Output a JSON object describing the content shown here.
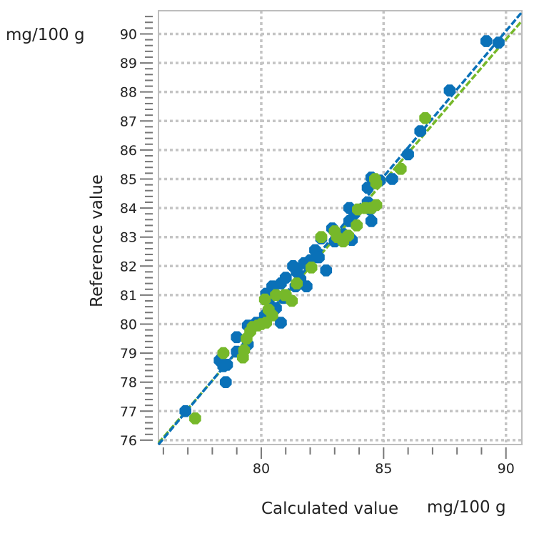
{
  "chart_data": {
    "type": "scatter",
    "xlabel": "Calculated value",
    "ylabel": "Reference value",
    "x_unit": "mg/100 g",
    "y_unit": "mg/100 g",
    "xlim": [
      75.8,
      90.65
    ],
    "ylim": [
      75.85,
      90.8
    ],
    "x_ticks": [
      80,
      85,
      90
    ],
    "y_ticks": [
      76,
      77,
      78,
      79,
      80,
      81,
      82,
      83,
      84,
      85,
      86,
      87,
      88,
      89,
      90
    ],
    "grid": true,
    "legend": "none",
    "series": [
      {
        "color": "#0a71b8",
        "regression_line": [
          [
            75.8,
            75.85
          ],
          [
            90.65,
            90.75
          ]
        ],
        "points": [
          [
            76.9,
            77.0
          ],
          [
            78.55,
            78.0
          ],
          [
            78.3,
            78.75
          ],
          [
            78.45,
            78.55
          ],
          [
            78.6,
            78.6
          ],
          [
            79.0,
            79.55
          ],
          [
            79.0,
            79.05
          ],
          [
            79.45,
            79.3
          ],
          [
            79.45,
            79.95
          ],
          [
            79.8,
            80.05
          ],
          [
            80.15,
            80.3
          ],
          [
            80.3,
            80.8
          ],
          [
            80.2,
            81.05
          ],
          [
            80.6,
            80.55
          ],
          [
            80.8,
            80.05
          ],
          [
            80.45,
            81.3
          ],
          [
            80.9,
            80.9
          ],
          [
            80.8,
            81.4
          ],
          [
            81.0,
            81.6
          ],
          [
            81.4,
            81.3
          ],
          [
            81.6,
            81.55
          ],
          [
            81.85,
            81.3
          ],
          [
            81.45,
            81.8
          ],
          [
            81.75,
            82.1
          ],
          [
            81.3,
            82.0
          ],
          [
            82.2,
            82.55
          ],
          [
            82.35,
            82.3
          ],
          [
            82.65,
            81.85
          ],
          [
            82.0,
            82.2
          ],
          [
            82.45,
            82.95
          ],
          [
            82.9,
            83.3
          ],
          [
            83.0,
            82.85
          ],
          [
            83.35,
            83.1
          ],
          [
            83.7,
            82.9
          ],
          [
            83.6,
            83.55
          ],
          [
            83.6,
            84.0
          ],
          [
            83.8,
            83.8
          ],
          [
            84.35,
            84.2
          ],
          [
            84.5,
            83.55
          ],
          [
            84.45,
            83.95
          ],
          [
            84.5,
            85.05
          ],
          [
            84.85,
            84.95
          ],
          [
            84.35,
            84.7
          ],
          [
            85.35,
            85.0
          ],
          [
            86.0,
            85.85
          ],
          [
            86.5,
            86.65
          ],
          [
            87.7,
            88.05
          ],
          [
            89.2,
            89.75
          ],
          [
            89.7,
            89.7
          ]
        ]
      },
      {
        "color": "#76b82a",
        "regression_line": [
          [
            75.8,
            75.9
          ],
          [
            90.65,
            90.45
          ]
        ],
        "points": [
          [
            77.3,
            76.75
          ],
          [
            78.45,
            79.0
          ],
          [
            79.25,
            78.85
          ],
          [
            79.3,
            79.1
          ],
          [
            79.4,
            79.5
          ],
          [
            79.55,
            79.75
          ],
          [
            79.65,
            79.9
          ],
          [
            79.85,
            79.95
          ],
          [
            80.0,
            80.0
          ],
          [
            80.2,
            80.05
          ],
          [
            80.45,
            80.3
          ],
          [
            80.3,
            80.5
          ],
          [
            80.15,
            80.85
          ],
          [
            80.6,
            81.0
          ],
          [
            80.95,
            81.0
          ],
          [
            81.25,
            80.8
          ],
          [
            81.45,
            81.4
          ],
          [
            81.0,
            81.0
          ],
          [
            82.05,
            81.95
          ],
          [
            82.45,
            83.0
          ],
          [
            83.0,
            83.2
          ],
          [
            83.1,
            83.0
          ],
          [
            83.35,
            82.85
          ],
          [
            83.55,
            83.05
          ],
          [
            83.9,
            83.4
          ],
          [
            83.95,
            83.95
          ],
          [
            84.25,
            84.0
          ],
          [
            84.5,
            84.0
          ],
          [
            84.7,
            84.1
          ],
          [
            84.7,
            84.85
          ],
          [
            84.65,
            85.0
          ],
          [
            85.7,
            85.35
          ],
          [
            86.7,
            87.1
          ]
        ]
      }
    ]
  }
}
